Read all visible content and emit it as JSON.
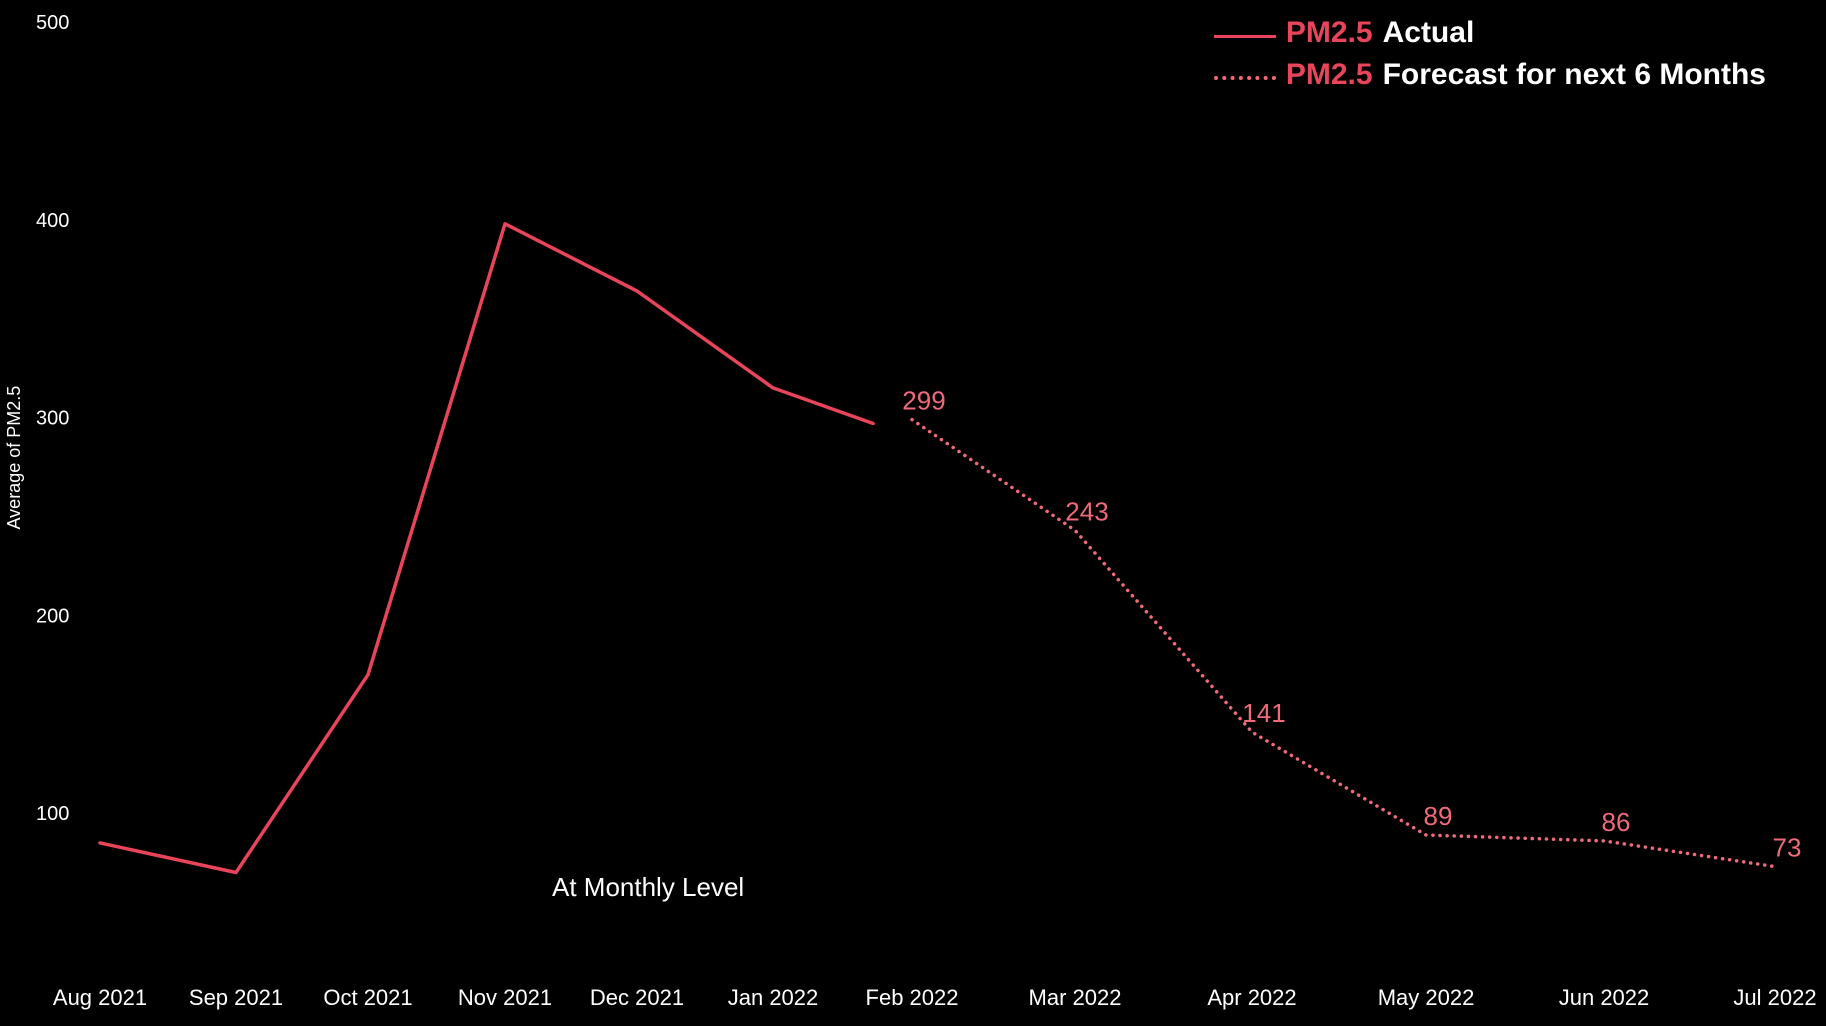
{
  "chart_data": {
    "type": "line",
    "ylabel": "Average of PM2.5",
    "ylim": [
      0,
      500
    ],
    "yticks": [
      100,
      200,
      300,
      400,
      500
    ],
    "categories": [
      "Aug 2021",
      "Sep 2021",
      "Oct 2021",
      "Nov 2021",
      "Dec 2021",
      "Jan 2022",
      "Feb 2022",
      "Mar 2022",
      "Apr 2022",
      "May 2022",
      "Jun 2022",
      "Jul 2022"
    ],
    "series": [
      {
        "name": "Actual",
        "style": "solid",
        "color": "#e8445a",
        "x": [
          "Aug 2021",
          "Sep 2021",
          "Oct 2021",
          "Nov 2021",
          "Dec 2021",
          "Jan 2022",
          "Feb 2022"
        ],
        "values": [
          85,
          70,
          170,
          398,
          364,
          315,
          290
        ]
      },
      {
        "name": "Forecast for next 6 Months",
        "style": "dotted",
        "color": "#f06a7a",
        "x": [
          "Feb 2022",
          "Mar 2022",
          "Apr 2022",
          "May 2022",
          "Jun 2022",
          "Jul 2022"
        ],
        "values": [
          299,
          243,
          141,
          89,
          86,
          73
        ],
        "data_labels": [
          "299",
          "243",
          "141",
          "89",
          "86",
          "73"
        ]
      }
    ],
    "grid": false,
    "legend_position": "top-right"
  },
  "legend": {
    "metric": "PM2.5",
    "actual_line": "_____",
    "actual_label": "Actual",
    "forecast_line": ".......",
    "forecast_label": "Forecast for next 6 Months"
  },
  "annotation": "At Monthly Level",
  "colors": {
    "background": "#000000",
    "actual": "#e8445a",
    "forecast": "#f06a7a",
    "text": "#ffffff"
  }
}
